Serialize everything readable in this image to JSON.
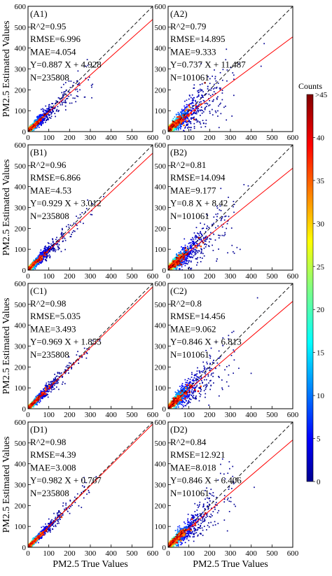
{
  "axis": {
    "ylabel": "PM2.5 Estimated Values",
    "xlabel": "PM2.5 True Values",
    "xlim": [
      0,
      600
    ],
    "ylim": [
      0,
      600
    ],
    "ticks": [
      0,
      100,
      200,
      300,
      400,
      500,
      600
    ],
    "tick_labels": [
      "0",
      "100",
      "200",
      "300",
      "400",
      "500",
      "600"
    ]
  },
  "colorbar": {
    "title": "Counts",
    "range": [
      0,
      45
    ],
    "ticks": [
      0,
      5,
      10,
      15,
      20,
      25,
      30,
      35,
      40
    ],
    "tick_labels": [
      "0",
      "5",
      "10",
      "15",
      "20",
      "25",
      "30",
      "35",
      "40"
    ],
    "max_label": ">45",
    "colormap": "jet"
  },
  "colors": {
    "fit_line": "#ff0000",
    "identity_line": "#000000"
  },
  "chart_data": [
    {
      "type": "scatter",
      "panel": "(A1)",
      "stats": [
        "R^2=0.95",
        "RMSE=6.996",
        "MAE=4.054",
        "Y=0.887 X + 4.928",
        "N=235808"
      ],
      "slope": 0.887,
      "intercept": 4.928,
      "spread": 0.14,
      "n": 235808
    },
    {
      "type": "scatter",
      "panel": "(A2)",
      "stats": [
        "R^2=0.79",
        "RMSE=14.895",
        "MAE=9.333",
        "Y=0.737 X + 11.487",
        "N=101061"
      ],
      "slope": 0.737,
      "intercept": 11.487,
      "spread": 0.3,
      "n": 101061
    },
    {
      "type": "scatter",
      "panel": "(B1)",
      "stats": [
        "R^2=0.96",
        "RMSE=6.866",
        "MAE=4.53",
        "Y=0.929 X + 3.012",
        "N=235808"
      ],
      "slope": 0.929,
      "intercept": 3.012,
      "spread": 0.13,
      "n": 235808
    },
    {
      "type": "scatter",
      "panel": "(B2)",
      "stats": [
        "R^2=0.81",
        "RMSE=14.094",
        "MAE=9.177",
        "Y=0.8 X + 8.42",
        "N=101061"
      ],
      "slope": 0.8,
      "intercept": 8.42,
      "spread": 0.28,
      "n": 101061
    },
    {
      "type": "scatter",
      "panel": "(C1)",
      "stats": [
        "R^2=0.98",
        "RMSE=5.035",
        "MAE=3.493",
        "Y=0.969 X + 1.855",
        "N=235808"
      ],
      "slope": 0.969,
      "intercept": 1.855,
      "spread": 0.1,
      "n": 235808
    },
    {
      "type": "scatter",
      "panel": "(C2)",
      "stats": [
        "R^2=0.8",
        "RMSE=14.456",
        "MAE=9.062",
        "Y=0.846 X + 6.813",
        "N=101061"
      ],
      "slope": 0.846,
      "intercept": 6.813,
      "spread": 0.28,
      "n": 101061
    },
    {
      "type": "scatter",
      "panel": "(D1)",
      "stats": [
        "R^2=0.98",
        "RMSE=4.39",
        "MAE=3.008",
        "Y=0.982 X + 0.767",
        "N=235808"
      ],
      "slope": 0.982,
      "intercept": 0.767,
      "spread": 0.09,
      "n": 235808
    },
    {
      "type": "scatter",
      "panel": "(D2)",
      "stats": [
        "R^2=0.84",
        "RMSE=12.921",
        "MAE=8.018",
        "Y=0.846 X + 6.406",
        "N=101061"
      ],
      "slope": 0.846,
      "intercept": 6.406,
      "spread": 0.25,
      "n": 101061
    }
  ]
}
